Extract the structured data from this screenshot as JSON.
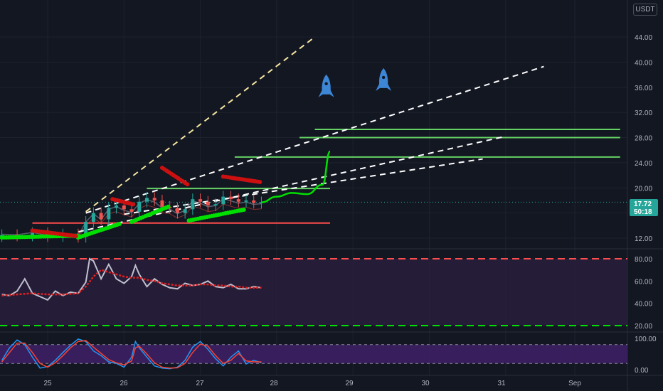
{
  "currency_label": "USDT",
  "colors": {
    "background": "#131722",
    "grid": "#1e222d",
    "up_candle": "#26a69a",
    "down_candle": "#ef5350",
    "fib_line": "#f5e7a1",
    "fan_line": "#ffffff",
    "green_level": "#66d266",
    "red_level": "#ff4d4d",
    "green_marker": "#00e000",
    "red_marker": "#cc1010",
    "price_badge": "#26a69a",
    "rsi_line": "#c0c0d0",
    "rsi_ma": "#e02020",
    "rsi_band": "#2a1f3d",
    "stoch_band": "#3d1f63",
    "stoch_k": "#2196f3",
    "stoch_d": "#f44336",
    "rocket": "#3d86d6"
  },
  "price": {
    "current": "17.72",
    "countdown": "50:18"
  },
  "chart_data": [
    {
      "type": "candlestick",
      "title": "",
      "x_ticks": [
        "25",
        "26",
        "27",
        "28",
        "29",
        "30",
        "31",
        "Sep"
      ],
      "y_ticks": [
        "44.00",
        "40.00",
        "36.00",
        "32.00",
        "28.00",
        "24.00",
        "20.00",
        "16.00",
        "12.00"
      ],
      "ylim": [
        10,
        46
      ],
      "xlim": [
        24.4,
        32.7
      ],
      "candles_close_approx": [
        [
          24.4,
          12.5
        ],
        [
          24.6,
          12.4
        ],
        [
          24.8,
          12.8
        ],
        [
          25.0,
          12.3
        ],
        [
          25.2,
          12.6
        ],
        [
          25.4,
          12.2
        ],
        [
          25.5,
          14.6
        ],
        [
          25.6,
          16.0
        ],
        [
          25.7,
          15.0
        ],
        [
          25.8,
          16.8
        ],
        [
          25.9,
          17.2
        ],
        [
          26.0,
          16.6
        ],
        [
          26.1,
          16.2
        ],
        [
          26.2,
          17.8
        ],
        [
          26.3,
          18.4
        ],
        [
          26.4,
          18.0
        ],
        [
          26.5,
          17.0
        ],
        [
          26.6,
          16.8
        ],
        [
          26.7,
          16.0
        ],
        [
          26.8,
          16.6
        ],
        [
          26.9,
          18.2
        ],
        [
          27.0,
          17.8
        ],
        [
          27.1,
          17.2
        ],
        [
          27.2,
          17.4
        ],
        [
          27.3,
          18.6
        ],
        [
          27.4,
          18.2
        ],
        [
          27.5,
          17.8
        ],
        [
          27.6,
          18.0
        ],
        [
          27.7,
          17.6
        ],
        [
          27.8,
          17.72
        ]
      ],
      "horizontal_levels": [
        {
          "price": 29.3,
          "x_from": 28.5,
          "x_to": 32.5,
          "color": "green"
        },
        {
          "price": 28.0,
          "x_from": 28.3,
          "x_to": 32.5,
          "color": "green"
        },
        {
          "price": 24.9,
          "x_from": 27.45,
          "x_to": 32.5,
          "color": "green"
        },
        {
          "price": 19.9,
          "x_from": 26.3,
          "x_to": 28.7,
          "color": "green"
        },
        {
          "price": 14.4,
          "x_from": 24.8,
          "x_to": 28.7,
          "color": "red"
        }
      ],
      "fan_lines": [
        {
          "from": [
            25.5,
            16.2
          ],
          "to": [
            28.5,
            44.0
          ],
          "style": "fib"
        },
        {
          "from": [
            25.5,
            16.0
          ],
          "to": [
            31.5,
            39.3
          ],
          "style": "fan"
        },
        {
          "from": [
            26.0,
            15.8
          ],
          "to": [
            30.7,
            24.6
          ],
          "style": "fan"
        },
        {
          "from": [
            25.4,
            13.0
          ],
          "to": [
            31.0,
            28.2
          ],
          "style": "fan"
        }
      ],
      "projection_curve": [
        [
          27.8,
          17.7
        ],
        [
          28.0,
          18.6
        ],
        [
          28.2,
          19.2
        ],
        [
          28.4,
          19.0
        ],
        [
          28.6,
          20.5
        ],
        [
          28.7,
          25.8
        ]
      ],
      "rockets": [
        [
          28.65,
          36.0
        ],
        [
          29.4,
          37.0
        ]
      ]
    },
    {
      "type": "line",
      "title": "",
      "y_ticks": [
        "80.00",
        "60.00",
        "40.00",
        "20.00"
      ],
      "ylim": [
        16,
        84
      ],
      "levels": [
        80,
        20
      ],
      "series": [
        {
          "values": [
            [
              24.4,
              48
            ],
            [
              24.5,
              47
            ],
            [
              24.6,
              51
            ],
            [
              24.7,
              62
            ],
            [
              24.8,
              49
            ],
            [
              24.9,
              46
            ],
            [
              25.0,
              43
            ],
            [
              25.1,
              51
            ],
            [
              25.2,
              47
            ],
            [
              25.3,
              50
            ],
            [
              25.4,
              49
            ],
            [
              25.5,
              59
            ],
            [
              25.55,
              80
            ],
            [
              25.6,
              78
            ],
            [
              25.7,
              62
            ],
            [
              25.8,
              75
            ],
            [
              25.9,
              62
            ],
            [
              26.0,
              58
            ],
            [
              26.1,
              64
            ],
            [
              26.15,
              74
            ],
            [
              26.2,
              66
            ],
            [
              26.3,
              55
            ],
            [
              26.4,
              62
            ],
            [
              26.5,
              57
            ],
            [
              26.6,
              54
            ],
            [
              26.7,
              53
            ],
            [
              26.8,
              58
            ],
            [
              26.9,
              56
            ],
            [
              27.0,
              57
            ],
            [
              27.1,
              60
            ],
            [
              27.2,
              55
            ],
            [
              27.3,
              54
            ],
            [
              27.4,
              57
            ],
            [
              27.5,
              53
            ],
            [
              27.6,
              53
            ],
            [
              27.7,
              55
            ],
            [
              27.8,
              54
            ]
          ]
        },
        {
          "values": [
            [
              24.4,
              47
            ],
            [
              24.6,
              48
            ],
            [
              24.8,
              49
            ],
            [
              25.0,
              48
            ],
            [
              25.2,
              48
            ],
            [
              25.4,
              49
            ],
            [
              25.5,
              55
            ],
            [
              25.6,
              64
            ],
            [
              25.7,
              70
            ],
            [
              25.8,
              68
            ],
            [
              25.9,
              66
            ],
            [
              26.0,
              64
            ],
            [
              26.1,
              63
            ],
            [
              26.2,
              63
            ],
            [
              26.3,
              61
            ],
            [
              26.4,
              60
            ],
            [
              26.5,
              58
            ],
            [
              26.6,
              57
            ],
            [
              26.7,
              56
            ],
            [
              26.8,
              56
            ],
            [
              26.9,
              56
            ],
            [
              27.0,
              57
            ],
            [
              27.1,
              57
            ],
            [
              27.2,
              56
            ],
            [
              27.3,
              56
            ],
            [
              27.4,
              55
            ],
            [
              27.5,
              55
            ],
            [
              27.6,
              54
            ],
            [
              27.7,
              54
            ],
            [
              27.8,
              54
            ]
          ]
        }
      ]
    },
    {
      "type": "line",
      "title": "",
      "y_ticks": [
        "100.00",
        "0.00"
      ],
      "ylim": [
        -12,
        112
      ],
      "levels": [
        80,
        20
      ],
      "series": [
        {
          "values": [
            [
              24.4,
              30
            ],
            [
              24.5,
              70
            ],
            [
              24.6,
              95
            ],
            [
              24.7,
              80
            ],
            [
              24.8,
              40
            ],
            [
              24.9,
              5
            ],
            [
              25.0,
              10
            ],
            [
              25.1,
              30
            ],
            [
              25.2,
              55
            ],
            [
              25.3,
              78
            ],
            [
              25.4,
              98
            ],
            [
              25.5,
              90
            ],
            [
              25.6,
              60
            ],
            [
              25.7,
              45
            ],
            [
              25.8,
              25
            ],
            [
              25.9,
              20
            ],
            [
              26.0,
              8
            ],
            [
              26.1,
              40
            ],
            [
              26.15,
              90
            ],
            [
              26.2,
              70
            ],
            [
              26.3,
              40
            ],
            [
              26.4,
              12
            ],
            [
              26.5,
              5
            ],
            [
              26.6,
              3
            ],
            [
              26.7,
              8
            ],
            [
              26.8,
              30
            ],
            [
              26.9,
              72
            ],
            [
              27.0,
              90
            ],
            [
              27.1,
              65
            ],
            [
              27.2,
              35
            ],
            [
              27.3,
              12
            ],
            [
              27.4,
              40
            ],
            [
              27.5,
              60
            ],
            [
              27.6,
              18
            ],
            [
              27.7,
              30
            ],
            [
              27.8,
              22
            ]
          ]
        },
        {
          "values": [
            [
              24.4,
              25
            ],
            [
              24.5,
              55
            ],
            [
              24.6,
              85
            ],
            [
              24.7,
              85
            ],
            [
              24.8,
              55
            ],
            [
              24.9,
              20
            ],
            [
              25.0,
              8
            ],
            [
              25.1,
              22
            ],
            [
              25.2,
              45
            ],
            [
              25.3,
              70
            ],
            [
              25.4,
              90
            ],
            [
              25.5,
              93
            ],
            [
              25.6,
              72
            ],
            [
              25.7,
              52
            ],
            [
              25.8,
              32
            ],
            [
              25.9,
              22
            ],
            [
              26.0,
              15
            ],
            [
              26.1,
              28
            ],
            [
              26.15,
              70
            ],
            [
              26.2,
              75
            ],
            [
              26.3,
              50
            ],
            [
              26.4,
              22
            ],
            [
              26.5,
              8
            ],
            [
              26.6,
              5
            ],
            [
              26.7,
              6
            ],
            [
              26.8,
              20
            ],
            [
              26.9,
              55
            ],
            [
              27.0,
              82
            ],
            [
              27.1,
              75
            ],
            [
              27.2,
              45
            ],
            [
              27.3,
              20
            ],
            [
              27.4,
              30
            ],
            [
              27.5,
              52
            ],
            [
              27.6,
              28
            ],
            [
              27.7,
              25
            ],
            [
              27.8,
              25
            ]
          ]
        }
      ]
    }
  ]
}
